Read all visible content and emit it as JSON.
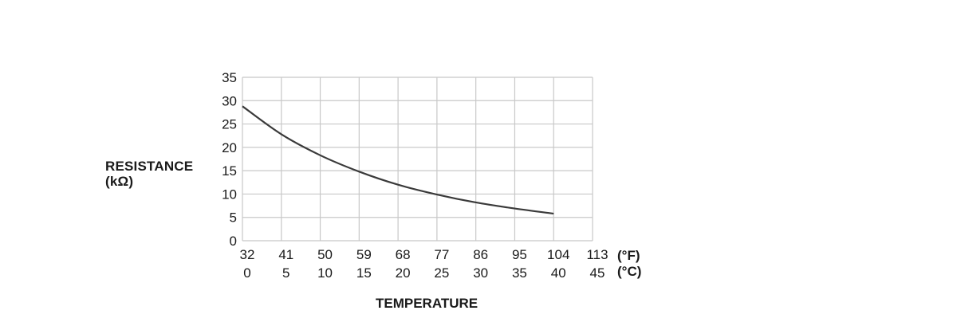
{
  "chart_data": {
    "type": "line",
    "ylabel_line1": "RESISTANCE",
    "ylabel_line2": "(kΩ)",
    "xlabel": "TEMPERATURE",
    "x_unit_f": "(°F)",
    "x_unit_c": "(°C)",
    "x_ticks_c": [
      "0",
      "5",
      "10",
      "15",
      "20",
      "25",
      "30",
      "35",
      "40",
      "45"
    ],
    "x_ticks_f": [
      "32",
      "41",
      "50",
      "59",
      "68",
      "77",
      "86",
      "95",
      "104",
      "113"
    ],
    "y_ticks": [
      "0",
      "5",
      "10",
      "15",
      "20",
      "25",
      "30",
      "35"
    ],
    "xlim": [
      0,
      45
    ],
    "ylim": [
      0,
      35
    ],
    "grid": true,
    "series": [
      {
        "x": [
          0,
          5,
          10,
          15,
          20,
          25,
          30,
          35,
          40
        ],
        "y": [
          28.8,
          22.8,
          18.3,
          14.8,
          12.0,
          9.9,
          8.2,
          6.9,
          5.8
        ]
      }
    ],
    "line_color": "#3a3a3a",
    "grid_color": "#c8c8c8"
  }
}
